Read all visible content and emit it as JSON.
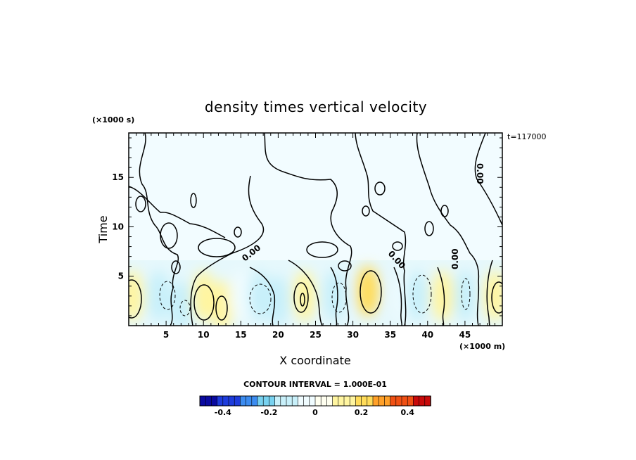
{
  "chart_data": {
    "type": "heatmap",
    "title": "density times vertical velocity",
    "xlabel": "X coordinate",
    "ylabel": "Time",
    "x_units": "(×1000 m)",
    "y_units": "(×1000 s)",
    "time_stamp": "t=117000",
    "xlim": [
      0,
      50
    ],
    "ylim": [
      0,
      19.5
    ],
    "x_ticks": [
      5,
      10,
      15,
      20,
      25,
      30,
      35,
      40,
      45
    ],
    "y_ticks": [
      5,
      10,
      15
    ],
    "contour_interval_text": "CONTOUR INTERVAL = 1.000E-01",
    "contour_labels": [
      "0.00",
      "0.00",
      "0.00",
      "0.00"
    ],
    "colorbar": {
      "range": [
        -0.5,
        0.5
      ],
      "tick_values": [
        -0.4,
        -0.2,
        0,
        0.2,
        0.4
      ],
      "tick_labels": [
        "-0.4",
        "-0.2",
        "0",
        "0.2",
        "0.4"
      ],
      "colors_low_to_high": [
        "#0a0aa0",
        "#1e3cdc",
        "#3c8cf0",
        "#78d2f0",
        "#c8f0fa",
        "#f0fcff",
        "#fffff0",
        "#fff5a0",
        "#ffdc5a",
        "#ffa028",
        "#f05014",
        "#c80a0a"
      ]
    },
    "cells": [
      {
        "x": 0.5,
        "t": 3,
        "value": 0.15
      },
      {
        "x": 4,
        "t": 3,
        "value": -0.12
      },
      {
        "x": 7,
        "t": 2,
        "value": -0.1
      },
      {
        "x": 10,
        "t": 3,
        "value": 0.14
      },
      {
        "x": 12.5,
        "t": 2,
        "value": 0.12
      },
      {
        "x": 15,
        "t": 3,
        "value": -0.08
      },
      {
        "x": 17.5,
        "t": 3,
        "value": -0.13
      },
      {
        "x": 20,
        "t": 2.5,
        "value": -0.1
      },
      {
        "x": 23.5,
        "t": 3,
        "value": 0.16
      },
      {
        "x": 27.5,
        "t": 3,
        "value": -0.13
      },
      {
        "x": 32,
        "t": 3.5,
        "value": 0.22
      },
      {
        "x": 37,
        "t": 3,
        "value": -0.08
      },
      {
        "x": 38.5,
        "t": 3,
        "value": -0.12
      },
      {
        "x": 42,
        "t": 3,
        "value": 0.1
      },
      {
        "x": 45,
        "t": 3,
        "value": -0.1
      },
      {
        "x": 49,
        "t": 3,
        "value": 0.15
      }
    ]
  }
}
